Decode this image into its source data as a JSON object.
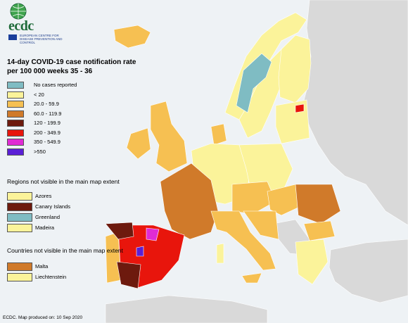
{
  "title": "14-day COVID-19 case notification rate per 100 000 weeks 35 - 36",
  "logo": {
    "brand": "ecdc",
    "tagline": "EUROPEAN CENTRE FOR DISEASE PREVENTION AND CONTROL"
  },
  "legend": [
    {
      "label": "No cases reported",
      "color": "#7fbcc3"
    },
    {
      "label": "< 20",
      "color": "#fbf39a"
    },
    {
      "label": "20.0 - 59.9",
      "color": "#f6c052"
    },
    {
      "label": "60.0 - 119.9",
      "color": "#d07a2a"
    },
    {
      "label": "120 - 199.9",
      "color": "#6d1a0e"
    },
    {
      "label": "200 - 349.9",
      "color": "#e8150c"
    },
    {
      "label": "350 - 549.9",
      "color": "#e02bd4"
    },
    {
      "label": ">550",
      "color": "#5a1fd6"
    }
  ],
  "regions_title": "Regions not visible in the main map extent",
  "regions": [
    {
      "label": "Azores",
      "color": "#fbf39a"
    },
    {
      "label": "Canary Islands",
      "color": "#6d1a0e"
    },
    {
      "label": "Greenland",
      "color": "#7fbcc3"
    },
    {
      "label": "Madeira",
      "color": "#fbf39a"
    }
  ],
  "countries_title": "Countries not visible in the main map extent",
  "countries": [
    {
      "label": "Malta",
      "color": "#d07a2a"
    },
    {
      "label": "Liechtenstein",
      "color": "#fbf39a"
    }
  ],
  "footer": "ECDC. Map produced on: 10 Sep 2020",
  "colors": {
    "sea": "#eef2f5",
    "non_eu": "#d9d9d9",
    "border": "#ffffff"
  }
}
